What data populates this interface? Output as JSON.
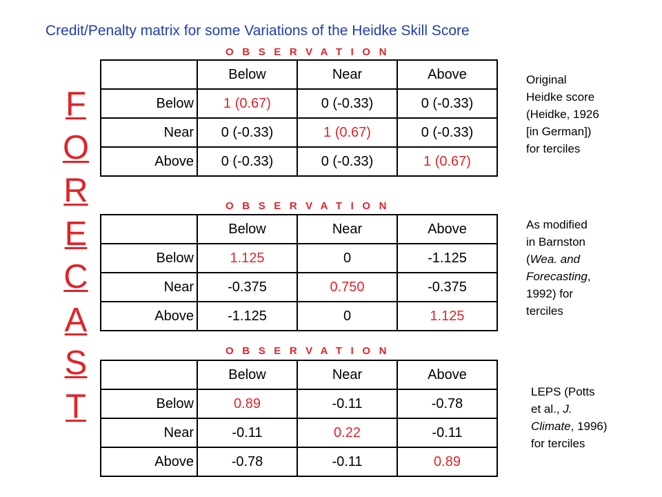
{
  "title": "Credit/Penalty matrix for some Variations of the Heidke Skill Score",
  "observation_label": "OBSERVATION",
  "forecast_letters": [
    "F",
    "O",
    "R",
    "E",
    "C",
    "A",
    "S",
    "T"
  ],
  "colors": {
    "title": "#1f3fa8",
    "accent": "#e0242a"
  },
  "columns": [
    "Below",
    "Near",
    "Above"
  ],
  "tables": [
    {
      "rows": [
        {
          "label": "Below",
          "cells": [
            "1 (0.67)",
            "0 (-0.33)",
            "0 (-0.33)"
          ]
        },
        {
          "label": "Near",
          "cells": [
            "0 (-0.33)",
            "1 (0.67)",
            "0 (-0.33)"
          ]
        },
        {
          "label": "Above",
          "cells": [
            "0 (-0.33)",
            "0 (-0.33)",
            "1 (0.67)"
          ]
        }
      ],
      "note": [
        "Original",
        "Heidke score",
        "(Heidke, 1926",
        "[in German])",
        "for terciles"
      ]
    },
    {
      "rows": [
        {
          "label": "Below",
          "cells": [
            "1.125",
            "0",
            "-1.125"
          ]
        },
        {
          "label": "Near",
          "cells": [
            "-0.375",
            "0.750",
            "-0.375"
          ]
        },
        {
          "label": "Above",
          "cells": [
            "-1.125",
            "0",
            "1.125"
          ]
        }
      ],
      "note": [
        "As modified",
        "in Barnston",
        "(",
        "Wea. and",
        "Forecasting",
        ",",
        "1992) for",
        "terciles"
      ]
    },
    {
      "rows": [
        {
          "label": "Below",
          "cells": [
            "0.89",
            "-0.11",
            "-0.78"
          ]
        },
        {
          "label": "Near",
          "cells": [
            "-0.11",
            "0.22",
            "-0.11"
          ]
        },
        {
          "label": "Above",
          "cells": [
            "-0.78",
            "-0.11",
            "0.89"
          ]
        }
      ],
      "note": [
        "LEPS (Potts",
        "et al., ",
        "J.",
        "Climate",
        ", 1996)",
        "for terciles"
      ]
    }
  ]
}
